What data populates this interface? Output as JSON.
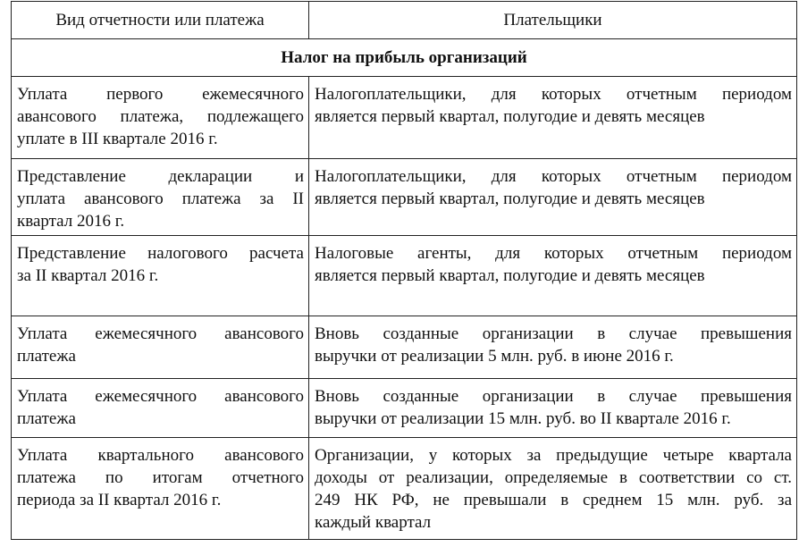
{
  "header": {
    "col1": "Вид отчетности или платежа",
    "col2": "Плательщики"
  },
  "section_title": "Налог на прибыль организаций",
  "rows": [
    {
      "type": [
        "Уплата первого ежемесячного",
        "авансового платежа, подлежащего",
        "уплате в III квартале 2016 г."
      ],
      "payers": [
        "Налогоплательщики, для которых отчетным периодом",
        "является первый квартал, полугодие и девять месяцев"
      ]
    },
    {
      "type": [
        "Представление декларации и",
        "уплата авансового платежа за II",
        "квартал 2016 г."
      ],
      "payers": [
        "Налогоплательщики, для которых отчетным периодом",
        "является первый квартал, полугодие и девять месяцев"
      ]
    },
    {
      "type": [
        "Представление налогового расчета",
        "за II квартал 2016 г."
      ],
      "payers": [
        "Налоговые агенты, для которых отчетным периодом",
        "является первый квартал, полугодие и девять месяцев"
      ]
    },
    {
      "type": [
        "Уплата ежемесячного авансового",
        "платежа"
      ],
      "payers": [
        "Вновь созданные организации в случае превышения",
        "выручки от реализации 5 млн. руб. в июне 2016 г."
      ]
    },
    {
      "type": [
        "Уплата ежемесячного авансового",
        "платежа"
      ],
      "payers": [
        "Вновь созданные организации в случае превышения",
        "выручки от реализации 15 млн. руб. во II квартале 2016 г."
      ]
    },
    {
      "type": [
        "Уплата квартального авансового",
        "платежа по итогам отчетного",
        "периода за II квартал 2016 г."
      ],
      "payers": [
        "Организации, у которых за предыдущие четыре квартала",
        "доходы от реализации, определяемые в соответствии со ст.",
        "249 НК РФ, не превышали в среднем 15 млн. руб. за",
        "каждый квартал"
      ]
    }
  ]
}
